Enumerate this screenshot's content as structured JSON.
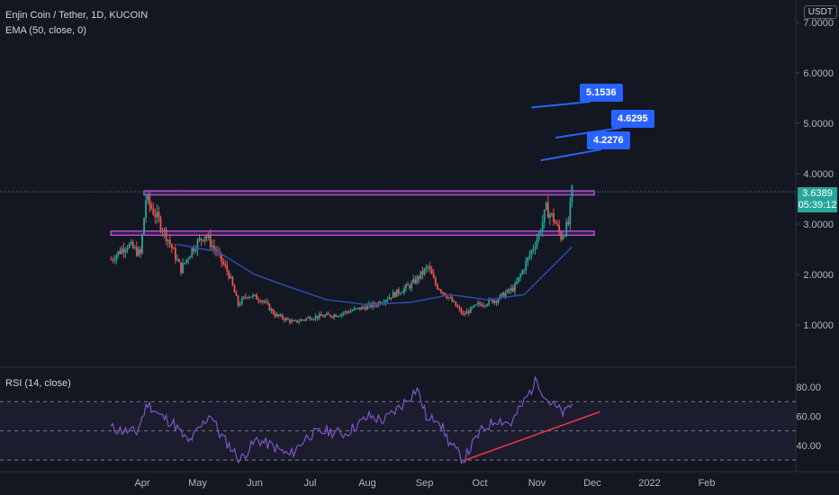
{
  "header": {
    "symbol": "Enjin Coin / Tether, 1D, KUCOIN",
    "indicator": "EMA (50, close, 0)",
    "rsi_label": "RSI (14, close)",
    "currency": "USDT"
  },
  "price_tag": {
    "value": "3.6389",
    "countdown": "05:39:12"
  },
  "callouts": [
    "5.1536",
    "4.6295",
    "4.2276"
  ],
  "colors": {
    "up": "#26a69a",
    "down": "#ef5350",
    "ema": "#2962ff",
    "rsi": "#7e57c2",
    "zone": "#b04fc8",
    "trend": "#f23645"
  },
  "chart_data": [
    {
      "type": "candlestick",
      "title": "",
      "x_ticks": [
        "Apr",
        "May",
        "Jun",
        "Jul",
        "Aug",
        "Sep",
        "Oct",
        "Nov",
        "Dec",
        "2022",
        "Feb"
      ],
      "y_ticks": [
        "1.0000",
        "2.0000",
        "3.0000",
        "4.0000",
        "5.0000",
        "6.0000",
        "7.0000"
      ],
      "ylim": [
        0.2,
        7.2
      ],
      "series_points": [
        [
          "2021-03-15",
          2.3
        ],
        [
          "2021-03-24",
          2.6
        ],
        [
          "2021-03-31",
          2.4
        ],
        [
          "2021-04-03",
          3.5
        ],
        [
          "2021-04-08",
          3.2
        ],
        [
          "2021-04-15",
          2.7
        ],
        [
          "2021-04-22",
          2.1
        ],
        [
          "2021-04-28",
          2.5
        ],
        [
          "2021-05-05",
          2.8
        ],
        [
          "2021-05-12",
          2.4
        ],
        [
          "2021-05-18",
          2.0
        ],
        [
          "2021-05-23",
          1.4
        ],
        [
          "2021-05-28",
          1.6
        ],
        [
          "2021-06-05",
          1.5
        ],
        [
          "2021-06-12",
          1.2
        ],
        [
          "2021-06-22",
          1.05
        ],
        [
          "2021-07-01",
          1.15
        ],
        [
          "2021-07-15",
          1.2
        ],
        [
          "2021-07-25",
          1.3
        ],
        [
          "2021-08-05",
          1.4
        ],
        [
          "2021-08-15",
          1.6
        ],
        [
          "2021-08-25",
          1.8
        ],
        [
          "2021-09-03",
          2.15
        ],
        [
          "2021-09-07",
          1.8
        ],
        [
          "2021-09-14",
          1.55
        ],
        [
          "2021-09-22",
          1.2
        ],
        [
          "2021-09-30",
          1.4
        ],
        [
          "2021-10-10",
          1.5
        ],
        [
          "2021-10-20",
          1.75
        ],
        [
          "2021-10-27",
          2.3
        ],
        [
          "2021-11-02",
          2.8
        ],
        [
          "2021-11-06",
          3.3
        ],
        [
          "2021-11-10",
          3.1
        ],
        [
          "2021-11-14",
          2.75
        ],
        [
          "2021-11-18",
          3.0
        ],
        [
          "2021-11-20",
          3.64
        ]
      ],
      "ema_points": [
        [
          "2021-04-20",
          2.6
        ],
        [
          "2021-05-12",
          2.45
        ],
        [
          "2021-06-01",
          2.0
        ],
        [
          "2021-06-20",
          1.75
        ],
        [
          "2021-07-10",
          1.5
        ],
        [
          "2021-08-01",
          1.4
        ],
        [
          "2021-08-25",
          1.45
        ],
        [
          "2021-09-15",
          1.6
        ],
        [
          "2021-10-05",
          1.5
        ],
        [
          "2021-10-25",
          1.6
        ],
        [
          "2021-11-05",
          2.0
        ],
        [
          "2021-11-20",
          2.55
        ]
      ],
      "zones": [
        {
          "start": "2021-04-02",
          "end": "2021-12-02",
          "low": 3.58,
          "high": 3.66
        },
        {
          "start": "2021-03-15",
          "end": "2021-12-02",
          "low": 2.78,
          "high": 2.86
        }
      ],
      "annotations": [
        {
          "label": "5.1536",
          "date": "2021-10-31",
          "value": 5.6
        },
        {
          "label": "4.6295",
          "date": "2021-11-13",
          "value": 5.0
        },
        {
          "label": "4.2276",
          "date": "2021-11-05",
          "value": 4.55
        }
      ]
    },
    {
      "type": "line",
      "title": "RSI (14, close)",
      "y_ticks": [
        "40.00",
        "60.00",
        "80.00"
      ],
      "ylim": [
        28,
        87
      ],
      "levels": [
        30,
        50,
        70
      ],
      "values": [
        [
          "2021-03-15",
          52
        ],
        [
          "2021-03-22",
          50
        ],
        [
          "2021-03-29",
          49
        ],
        [
          "2021-04-04",
          69
        ],
        [
          "2021-04-10",
          61
        ],
        [
          "2021-04-18",
          55
        ],
        [
          "2021-04-26",
          42
        ],
        [
          "2021-05-03",
          53
        ],
        [
          "2021-05-08",
          62
        ],
        [
          "2021-05-13",
          48
        ],
        [
          "2021-05-20",
          37
        ],
        [
          "2021-05-24",
          30
        ],
        [
          "2021-06-02",
          44
        ],
        [
          "2021-06-10",
          40
        ],
        [
          "2021-06-20",
          33
        ],
        [
          "2021-06-30",
          47
        ],
        [
          "2021-07-10",
          50
        ],
        [
          "2021-07-20",
          48
        ],
        [
          "2021-08-02",
          60
        ],
        [
          "2021-08-10",
          57
        ],
        [
          "2021-08-20",
          68
        ],
        [
          "2021-08-28",
          79
        ],
        [
          "2021-09-03",
          56
        ],
        [
          "2021-09-08",
          60
        ],
        [
          "2021-09-14",
          43
        ],
        [
          "2021-09-22",
          30
        ],
        [
          "2021-10-01",
          49
        ],
        [
          "2021-10-10",
          58
        ],
        [
          "2021-10-18",
          55
        ],
        [
          "2021-10-26",
          72
        ],
        [
          "2021-11-01",
          85
        ],
        [
          "2021-11-06",
          72
        ],
        [
          "2021-11-12",
          65
        ],
        [
          "2021-11-16",
          62
        ],
        [
          "2021-11-20",
          69
        ]
      ],
      "trendline": [
        [
          "2021-09-23",
          30
        ],
        [
          "2021-12-05",
          63
        ]
      ]
    }
  ]
}
